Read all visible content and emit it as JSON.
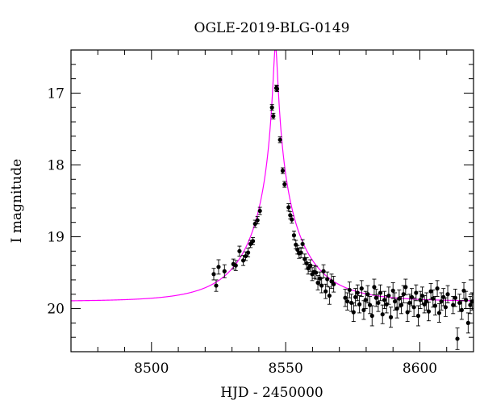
{
  "chart_data": {
    "type": "scatter",
    "title": "OGLE-2019-BLG-0149",
    "xlabel": "HJD - 2450000",
    "ylabel": "I magnitude",
    "xlim": [
      8470,
      8620
    ],
    "ylim": [
      20.6,
      16.4
    ],
    "y_inverted": true,
    "xticks": [
      8500,
      8550,
      8600
    ],
    "yticks": [
      17,
      18,
      19,
      20
    ],
    "grid": false,
    "colors": {
      "points": "#000000",
      "model": "#ff00ff"
    },
    "model": {
      "name": "",
      "baseline_mag": 19.9,
      "peak_time": 8546.2,
      "peak_mag": 16.35,
      "u0": 0.035,
      "tE": 21.0
    },
    "series": [
      {
        "type": "points-with-errorbars",
        "x": [
          8523.2,
          8524.1,
          8525.0,
          8527.2,
          8530.5,
          8531.4,
          8532.8,
          8534.2,
          8535.1,
          8536.0,
          8536.9,
          8537.8,
          8538.6,
          8539.5,
          8540.4,
          8544.9,
          8545.4,
          8546.5,
          8546.8,
          8547.9,
          8548.9,
          8549.6,
          8551.1,
          8551.7,
          8552.3,
          8553.1,
          8553.8,
          8554.4,
          8555.0,
          8555.7,
          8556.3,
          8557.1,
          8557.8,
          8558.4,
          8559.2,
          8559.9,
          8560.6,
          8561.3,
          8562.0,
          8562.8,
          8563.4,
          8564.1,
          8564.9,
          8565.5,
          8566.3,
          8567.1,
          8567.9,
          8572.2,
          8573.0,
          8573.8,
          8574.5,
          8575.3,
          8576.0,
          8576.8,
          8577.5,
          8578.3,
          8579.1,
          8579.8,
          8580.6,
          8581.4,
          8582.2,
          8583.0,
          8583.7,
          8584.5,
          8585.3,
          8586.1,
          8586.8,
          8587.6,
          8588.4,
          8589.2,
          8590.0,
          8590.7,
          8591.5,
          8592.3,
          8593.1,
          8593.9,
          8594.7,
          8595.4,
          8596.2,
          8597.0,
          8597.8,
          8598.6,
          8599.4,
          8600.2,
          8600.9,
          8601.7,
          8602.5,
          8603.3,
          8604.1,
          8604.9,
          8605.7,
          8606.5,
          8607.2,
          8608.0,
          8608.8,
          8609.6,
          8610.4,
          8612.4,
          8613.2,
          8614.0,
          8614.8,
          8615.6,
          8616.4,
          8617.2,
          8618.0,
          8618.8,
          8619.5
        ],
        "y": [
          19.52,
          19.68,
          19.42,
          19.48,
          19.38,
          19.4,
          19.2,
          19.33,
          19.27,
          19.22,
          19.1,
          19.06,
          18.82,
          18.77,
          18.64,
          17.2,
          17.32,
          16.93,
          16.94,
          17.65,
          18.08,
          18.27,
          18.59,
          18.7,
          18.76,
          18.98,
          19.11,
          19.18,
          19.23,
          19.22,
          19.1,
          19.31,
          19.37,
          19.44,
          19.4,
          19.52,
          19.49,
          19.5,
          19.64,
          19.58,
          19.68,
          19.48,
          19.76,
          19.59,
          19.82,
          19.62,
          19.66,
          19.85,
          19.9,
          19.74,
          19.92,
          20.05,
          19.84,
          19.78,
          19.94,
          19.72,
          20.02,
          19.88,
          19.8,
          19.95,
          20.1,
          19.7,
          19.85,
          19.92,
          19.78,
          20.08,
          19.88,
          19.94,
          19.82,
          20.12,
          19.75,
          19.9,
          20.0,
          19.86,
          19.95,
          19.8,
          19.7,
          20.05,
          19.92,
          19.84,
          19.98,
          19.78,
          20.1,
          19.88,
          19.82,
          19.94,
          19.9,
          20.04,
          19.76,
          19.86,
          19.96,
          19.72,
          20.06,
          19.9,
          19.84,
          19.98,
          19.8,
          19.95,
          19.85,
          20.42,
          19.92,
          20.02,
          19.75,
          19.88,
          20.2,
          19.95,
          19.9
        ],
        "yerr": [
          0.08,
          0.08,
          0.1,
          0.09,
          0.07,
          0.07,
          0.07,
          0.07,
          0.06,
          0.06,
          0.05,
          0.05,
          0.05,
          0.05,
          0.05,
          0.04,
          0.04,
          0.04,
          0.04,
          0.04,
          0.04,
          0.04,
          0.05,
          0.05,
          0.05,
          0.06,
          0.06,
          0.06,
          0.07,
          0.07,
          0.06,
          0.07,
          0.08,
          0.08,
          0.08,
          0.09,
          0.09,
          0.09,
          0.1,
          0.09,
          0.1,
          0.09,
          0.1,
          0.1,
          0.12,
          0.1,
          0.11,
          0.12,
          0.12,
          0.11,
          0.12,
          0.13,
          0.12,
          0.11,
          0.12,
          0.11,
          0.13,
          0.12,
          0.12,
          0.12,
          0.14,
          0.11,
          0.12,
          0.12,
          0.11,
          0.13,
          0.12,
          0.12,
          0.12,
          0.14,
          0.11,
          0.12,
          0.13,
          0.12,
          0.12,
          0.12,
          0.11,
          0.13,
          0.12,
          0.12,
          0.13,
          0.11,
          0.14,
          0.12,
          0.12,
          0.12,
          0.12,
          0.13,
          0.11,
          0.12,
          0.13,
          0.11,
          0.13,
          0.12,
          0.12,
          0.13,
          0.12,
          0.12,
          0.12,
          0.15,
          0.12,
          0.13,
          0.11,
          0.12,
          0.14,
          0.12,
          0.12
        ]
      }
    ]
  }
}
